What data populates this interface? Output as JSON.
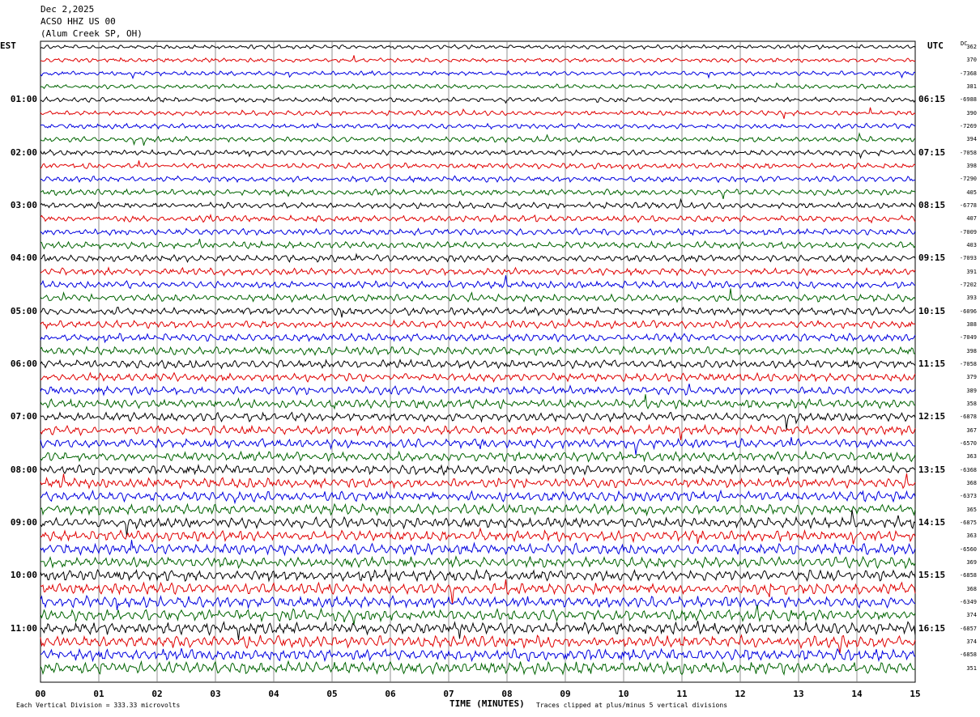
{
  "header": {
    "date": "Dec 2,2025",
    "station": "ACSO HHZ US 00",
    "location": "(Alum Creek SP, OH)"
  },
  "tz_left": "EST",
  "tz_right": "UTC",
  "dc_header": "DC",
  "left_times": [
    "01:00",
    "02:00",
    "03:00",
    "04:00",
    "05:00",
    "06:00",
    "07:00",
    "08:00",
    "09:00",
    "10:00",
    "11:00"
  ],
  "right_times": [
    "06:15",
    "07:15",
    "08:15",
    "09:15",
    "10:15",
    "11:15",
    "12:15",
    "13:15",
    "14:15",
    "15:15",
    "16:15"
  ],
  "dc_values": [
    "362",
    "370",
    "-7368",
    "381",
    "-6988",
    "390",
    "-7269",
    "394",
    "-7058",
    "398",
    "-7290",
    "405",
    "-6778",
    "407",
    "-7009",
    "403",
    "-7093",
    "391",
    "-7202",
    "393",
    "-6096",
    "388",
    "-7049",
    "398",
    "-7058",
    "379",
    "389",
    "358",
    "-6878",
    "367",
    "-6570",
    "363",
    "-6368",
    "368",
    "-6373",
    "365",
    "-6875",
    "363",
    "-6560",
    "369",
    "-6858",
    "368",
    "-6349",
    "374",
    "-6857",
    "374",
    "-6858",
    "351"
  ],
  "x_ticks": [
    "00",
    "01",
    "02",
    "03",
    "04",
    "05",
    "06",
    "07",
    "08",
    "09",
    "10",
    "11",
    "12",
    "13",
    "14",
    "15"
  ],
  "x_label": "TIME (MINUTES)",
  "footer_left": "Each Vertical Division =  333.33 microvolts",
  "footer_right": "Traces clipped at plus/minus 5 vertical divisions",
  "chart_data": {
    "type": "line",
    "traces": 48,
    "trace_minutes": 15,
    "x_range": [
      0,
      15
    ],
    "colors": [
      "#000000",
      "#e00000",
      "#0000e0",
      "#006400"
    ],
    "grid": true
  }
}
